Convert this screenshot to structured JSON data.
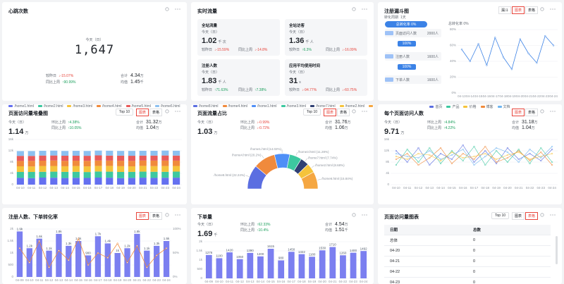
{
  "widgets": {
    "heartbeat": {
      "title": "心跳次数",
      "period": "今天（日）",
      "value": "1,647",
      "compare": [
        {
          "label": "较昨日",
          "value": "↓-15.07%"
        },
        {
          "label": "同比上周",
          "value": "↑90.99%"
        }
      ],
      "stats": [
        {
          "label": "合计",
          "value": "4.34",
          "unit": "万"
        },
        {
          "label": "均值",
          "value": "1.45",
          "unit": "千"
        }
      ]
    },
    "realtime": {
      "title": "实时流量",
      "boxes": [
        {
          "name": "全站流量",
          "period": "今天（日）",
          "value": "1.02",
          "unit": "千 次",
          "compare": [
            {
              "label": "较昨日",
              "value": "↓-15.59%"
            },
            {
              "label": "同比上周",
              "value": "↓-14.8%"
            }
          ]
        },
        {
          "name": "全站访客",
          "period": "今天（日）",
          "value": "1.36",
          "unit": "千 人",
          "compare": [
            {
              "label": "较昨日",
              "value": "↑6.3%"
            },
            {
              "label": "同比上周",
              "value": "↓-16.09%"
            }
          ]
        },
        {
          "name": "注册人数",
          "period": "今天（日）",
          "value": "1.83",
          "unit": "千 人",
          "compare": [
            {
              "label": "较昨日",
              "value": "↑71.63%"
            },
            {
              "label": "同比上周",
              "value": "↑7.38%"
            }
          ]
        },
        {
          "name": "应用平均使用时间",
          "period": "今天（日）",
          "value": "31",
          "unit": "s",
          "compare": [
            {
              "label": "较昨日",
              "value": "↓-94.77%"
            },
            {
              "label": "同比上周",
              "value": "↓-60.75%"
            }
          ]
        }
      ]
    },
    "funnel": {
      "title": "注册漏斗图",
      "tabs": [
        "漏斗",
        "图表",
        "表格"
      ],
      "active_tab": "图表",
      "cycle_label": "转化周期",
      "cycle": "1天",
      "overall": "总转化率 0%",
      "steps": [
        {
          "name": "页面访问人数",
          "count": "2000人"
        },
        {
          "name": "注册人数",
          "count": "1600人"
        },
        {
          "name": "下单人数",
          "count": "1600人"
        }
      ],
      "rates": [
        "100%",
        "100%"
      ],
      "chart": {
        "title": "总转化率 0%",
        "color": "#3b82e6",
        "categories": [
          "04-13",
          "04-14",
          "04-15",
          "04-16",
          "04-17",
          "04-18",
          "04-19",
          "04-20",
          "04-21",
          "04-22",
          "04-23",
          "04-24"
        ],
        "values": [
          55,
          40,
          62,
          35,
          70,
          45,
          30,
          68,
          50,
          38,
          72,
          60
        ],
        "ylim": [
          0,
          80
        ],
        "yticks": [
          {
            "value": 0,
            "label": "0%"
          },
          {
            "value": 20,
            "label": "20%"
          },
          {
            "value": 40,
            "label": "40%"
          },
          {
            "value": 60,
            "label": "60%"
          },
          {
            "value": 80,
            "label": "80%"
          }
        ]
      }
    },
    "stacked": {
      "title": "页面访问量堆叠图",
      "select": "Top 10",
      "tabs": [
        "图表",
        "表格"
      ],
      "active_tab": "图表",
      "kpi": {
        "period": "今天（日）",
        "value": "1.14",
        "unit": "万",
        "compare": [
          {
            "label": "环比上周",
            "value": "↑4.38%"
          },
          {
            "label": "同比上周",
            "value": "↑10.05%"
          }
        ],
        "stats": [
          {
            "label": "合计",
            "value": "31.32",
            "unit": "万"
          },
          {
            "label": "均值",
            "value": "1.04",
            "unit": "万"
          }
        ]
      },
      "chart": {
        "categories": [
          "04-10",
          "04-11",
          "04-12",
          "04-13",
          "04-14",
          "04-15",
          "04-16",
          "04-17",
          "04-18",
          "04-19",
          "04-20",
          "04-21",
          "04-22",
          "04-23",
          "04-24"
        ],
        "ylim": [
          0,
          16000
        ],
        "yticks": [
          0,
          {
            "value": 4000,
            "label": "4k"
          },
          {
            "value": 8000,
            "label": "8k"
          },
          {
            "value": 12000,
            "label": "12k"
          },
          {
            "value": 16000,
            "label": "16k"
          }
        ],
        "series": [
          {
            "name": "/home1.html",
            "color": "#6470f0",
            "values": [
              2400,
              2300,
              2500,
              2450,
              2350,
              2420,
              2380,
              2500,
              2460,
              2300,
              2410,
              2480,
              2390,
              2440,
              2470
            ]
          },
          {
            "name": "/home2.html",
            "color": "#3dc8a0",
            "values": [
              2100,
              2200,
              2050,
              2150,
              2180,
              2120,
              2090,
              2160,
              2140,
              2200,
              2110,
              2130,
              2170,
              2100,
              2150
            ]
          },
          {
            "name": "/home3.html",
            "color": "#f5c33b",
            "values": [
              2000,
              1950,
              2080,
              2020,
              1990,
              2060,
              2010,
              1980,
              2050,
              2030,
              1970,
              2040,
              2000,
              2070,
              2010
            ]
          },
          {
            "name": "/home4.html",
            "color": "#f08a3c",
            "values": [
              1900,
              1980,
              1870,
              1940,
              1920,
              1890,
              1960,
              1910,
              1880,
              1950,
              1930,
              1900,
              1970,
              1920,
              1890
            ]
          },
          {
            "name": "/home5.html",
            "color": "#e85a5a",
            "values": [
              1800,
              1750,
              1820,
              1780,
              1810,
              1760,
              1790,
              1830,
              1770,
              1800,
              1820,
              1750,
              1780,
              1810,
              1790
            ]
          },
          {
            "name": "/home6.html",
            "color": "#8cc0f0",
            "values": [
              1700,
              1730,
              1680,
              1720,
              1690,
              1740,
              1710,
              1700,
              1730,
              1680,
              1720,
              1700,
              1690,
              1740,
              1710
            ]
          }
        ]
      }
    },
    "share": {
      "title": "页面流量占比",
      "select": "Top 10",
      "tabs": [
        "图表",
        "表格"
      ],
      "active_tab": "图表",
      "kpi": {
        "period": "今天（日）",
        "value": "1.03",
        "unit": "万",
        "compare": [
          {
            "label": "环比上周",
            "value": "↓-0.99%"
          },
          {
            "label": "同比上周",
            "value": "↓-0.72%"
          }
        ],
        "stats": [
          {
            "label": "合计",
            "value": "31.76",
            "unit": "万"
          },
          {
            "label": "均值",
            "value": "1.06",
            "unit": "万"
          }
        ]
      },
      "chart": {
        "type": "pie",
        "names": [
          "/home8.html",
          "/home4.html",
          "/home1.html",
          "/home3.html",
          "/home7.html",
          "/home2.html",
          "/home6.html"
        ],
        "values": [
          22.24,
          20.2,
          14.02,
          11.28,
          7.74,
          8.68,
          15.84
        ],
        "value_labels": [
          "(22.24%)",
          "(20.2%)",
          "(14.02%)",
          "(11.28%)",
          "(7.74%)",
          "(8.68%)",
          "(15.84%)"
        ],
        "colors": [
          "#5b6ee1",
          "#f08a3c",
          "#4f8ff7",
          "#3dc8a0",
          "#2f3f73",
          "#f5c33b",
          "#f5a742"
        ]
      }
    },
    "visitors": {
      "title": "每个页面访问人数",
      "tabs": [
        "图表",
        "表格"
      ],
      "active_tab": "图表",
      "kpi": {
        "period": "今天（日）",
        "value": "9.71",
        "unit": "万",
        "compare": [
          {
            "label": "环比上周",
            "value": "↑4.84%"
          },
          {
            "label": "同比上周",
            "value": "↑4.22%"
          }
        ],
        "stats": [
          {
            "label": "合计",
            "value": "31.18",
            "unit": "万"
          },
          {
            "label": "均值",
            "value": "1.04",
            "unit": "万"
          }
        ]
      },
      "chart": {
        "categories": [
          "04-10",
          "04-11",
          "04-12",
          "04-13",
          "04-14",
          "04-15",
          "04-16",
          "04-17",
          "04-18",
          "04-19",
          "04-20",
          "04-21",
          "04-22",
          "04-23",
          "04-24"
        ],
        "ylim": [
          0,
          16000
        ],
        "yticks": [
          0,
          {
            "value": 4000,
            "label": "4k"
          },
          {
            "value": 8000,
            "label": "8k"
          },
          {
            "value": 12000,
            "label": "12k"
          },
          {
            "value": 16000,
            "label": "16k"
          }
        ],
        "series": [
          {
            "name": "首页",
            "color": "#5b6ee1",
            "values": [
              12000,
              8000,
              13000,
              7000,
              11000,
              9000,
              14000,
              8000,
              12000,
              7500,
              13000,
              9000,
              11000,
              8500,
              12500
            ]
          },
          {
            "name": "产品",
            "color": "#3dc8a0",
            "values": [
              7000,
              12500,
              8000,
              13000,
              7500,
              12000,
              8500,
              13500,
              7000,
              12000,
              8000,
              12500,
              7500,
              13000,
              8000
            ]
          },
          {
            "name": "价格",
            "color": "#f5c33b",
            "values": [
              10000,
              9000,
              11000,
              10500,
              8500,
              11500,
              9500,
              10000,
              11000,
              9000,
              10500,
              11500,
              9000,
              10000,
              11000
            ]
          },
          {
            "name": "博客",
            "color": "#f08a3c",
            "values": [
              9000,
              11000,
              7000,
              9500,
              13000,
              7500,
              11000,
              9000,
              13500,
              8000,
              9500,
              12000,
              8500,
              11500,
              7000
            ]
          },
          {
            "name": "文档",
            "color": "#6fb5f0",
            "values": [
              11000,
              10000,
              9500,
              12000,
              9000,
              10500,
              12500,
              7000,
              10000,
              13000,
              11500,
              8000,
              12500,
              9500,
              13500
            ]
          }
        ]
      }
    },
    "register": {
      "title": "注册人数、下单转化率",
      "tabs": [
        "图表",
        "表格"
      ],
      "active_tab": "图表",
      "chart": {
        "categories": [
          "04-09",
          "04-10",
          "04-11",
          "04-12",
          "04-13",
          "04-14",
          "04-15",
          "04-16",
          "04-17",
          "04-18",
          "04-19",
          "04-20",
          "04-21",
          "04-22",
          "04-23",
          "04-24"
        ],
        "ylim": [
          0,
          2000
        ],
        "yticks": [
          0,
          500,
          {
            "value": 1000,
            "label": "1k"
          },
          {
            "value": 1500,
            "label": "1.5k"
          },
          {
            "value": 2000,
            "label": "2k"
          }
        ],
        "y2lim": [
          0,
          100
        ],
        "y2ticks": [
          {
            "value": 0,
            "label": "0%"
          },
          {
            "value": 50,
            "label": "50%"
          },
          {
            "value": 100,
            "label": "100%"
          }
        ],
        "series": [
          {
            "name": "注册人数",
            "color": "#7b7ff0",
            "values": [
              1900,
              1200,
              1600,
              1100,
              1800,
              1300,
              1500,
              900,
              1700,
              1400,
              1000,
              1200,
              1800,
              1100,
              1300,
              1500
            ],
            "value_labels": [
              "1.9k",
              "1.2k",
              "1.6k",
              "1.1k",
              "1.8k",
              "1.3k",
              "1.5k",
              "900",
              "1.7k",
              "1.4k",
              "1k",
              "1.2k",
              "1.8k",
              "1.1k",
              "1.3k",
              "1.5k"
            ]
          },
          {
            "name": "下单转化率",
            "color": "#f08a3c",
            "axis": "y2",
            "values": [
              60,
              30,
              75,
              20,
              55,
              35,
              80,
              25,
              50,
              40,
              70,
              30,
              65,
              20,
              45,
              60
            ]
          }
        ]
      }
    },
    "orders": {
      "title": "下单量",
      "kpi": {
        "period": "今天（日）",
        "value": "1.69",
        "unit": "千",
        "compare": [
          {
            "label": "环比上周",
            "value": "↑62.33%"
          },
          {
            "label": "同比上周",
            "value": "↑10.4%"
          }
        ],
        "stats": [
          {
            "label": "合计",
            "value": "4.54",
            "unit": "万"
          },
          {
            "label": "均值",
            "value": "1.51",
            "unit": "千"
          }
        ]
      },
      "chart": {
        "categories": [
          "04-09",
          "04-10",
          "04-11",
          "04-12",
          "04-13",
          "04-14",
          "04-15",
          "04-16",
          "04-17",
          "04-18",
          "04-19",
          "04-20",
          "04-21",
          "04-22",
          "04-23",
          "04-24"
        ],
        "ylim": [
          0,
          2000
        ],
        "yticks": [
          0,
          500,
          {
            "value": 1000,
            "label": "1k"
          },
          {
            "value": 1500,
            "label": "1.5k"
          },
          {
            "value": 2000,
            "label": "2k"
          }
        ],
        "color": "#7b7ff0",
        "values": [
          1276,
          1100,
          1420,
          1050,
          1390,
          1200,
          1615,
          980,
          1450,
          1322,
          1180,
          1530,
          1710,
          1260,
          1400,
          1492
        ]
      }
    },
    "table": {
      "title": "页面访问量图表",
      "select": "Top 10",
      "tabs": [
        "图表",
        "表格"
      ],
      "active_tab": "表格",
      "header": [
        "日期",
        "总数"
      ],
      "rows": [
        [
          "总体",
          "0"
        ],
        [
          "04-20",
          "0"
        ],
        [
          "04-21",
          "0"
        ],
        [
          "04-22",
          "0"
        ],
        [
          "04-23",
          "0"
        ]
      ]
    }
  }
}
